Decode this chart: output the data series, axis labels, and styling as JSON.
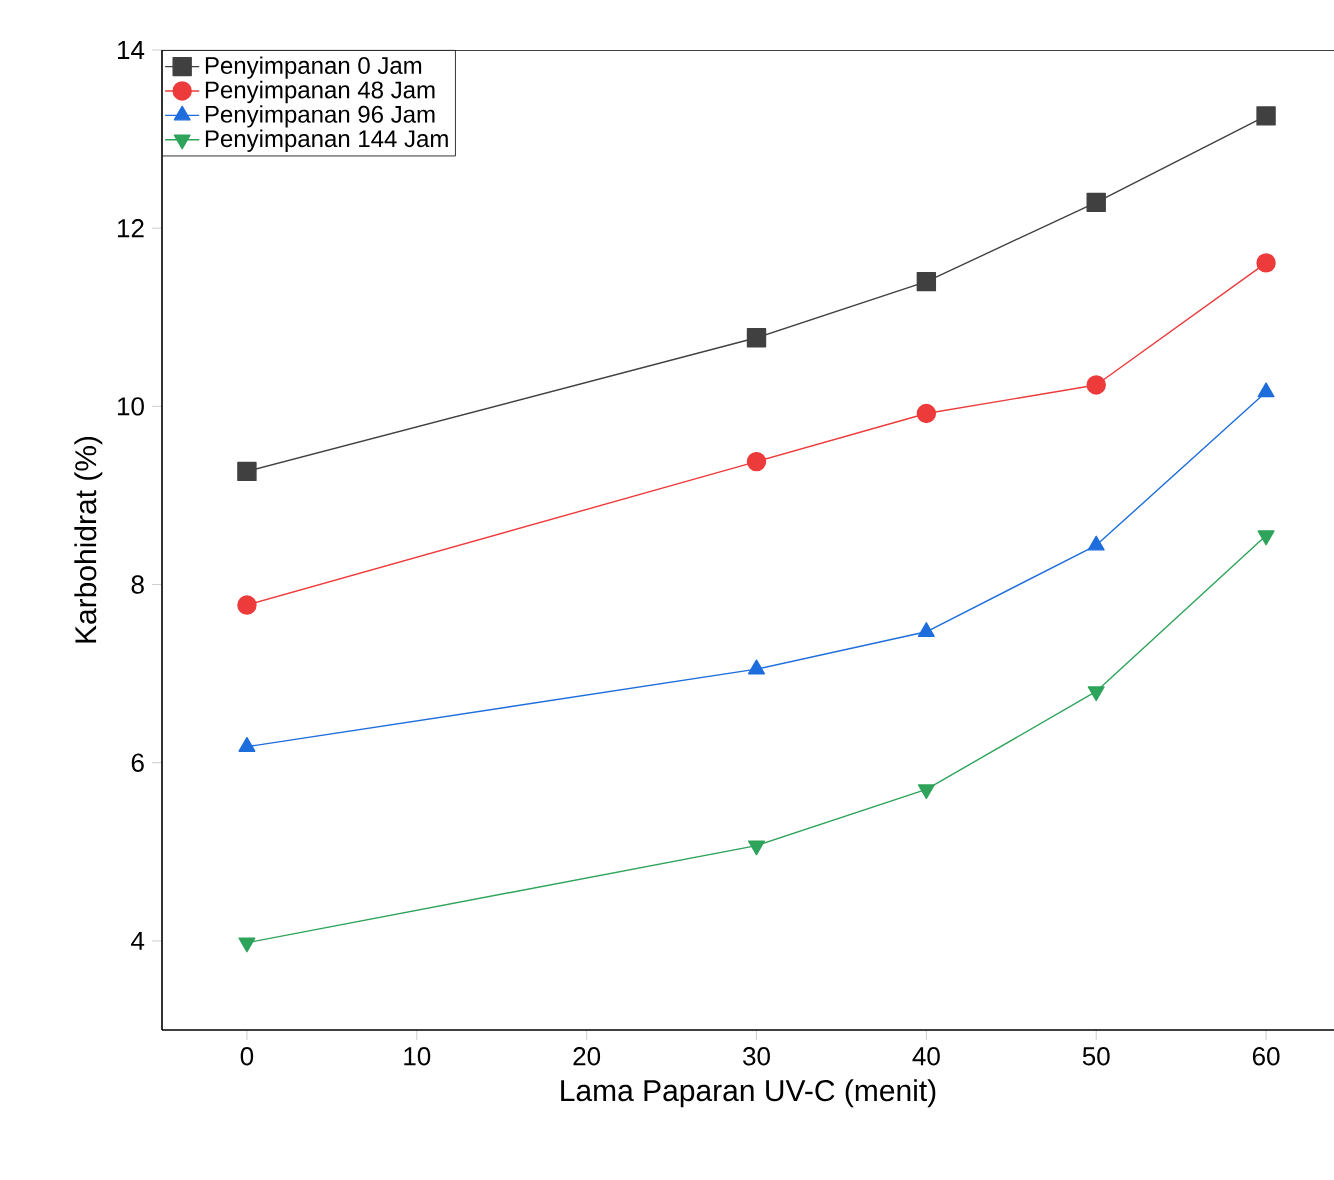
{
  "chart_data": {
    "type": "line",
    "xlabel": "Lama Paparan UV-C (menit)",
    "ylabel": "Karbohidrat (%)",
    "x": [
      0,
      30,
      40,
      50,
      60
    ],
    "series": [
      {
        "name": "Penyimpanan 0 Jam",
        "color": "#404040",
        "marker": "square",
        "values": [
          9.27,
          10.77,
          11.4,
          12.29,
          13.26
        ]
      },
      {
        "name": "Penyimpanan 48 Jam",
        "color": "#ed3a3a",
        "marker": "circle",
        "values": [
          7.77,
          9.38,
          9.92,
          10.24,
          11.61
        ]
      },
      {
        "name": "Penyimpanan 96 Jam",
        "color": "#1d6ddc",
        "marker": "triangle",
        "values": [
          6.18,
          7.05,
          7.47,
          8.44,
          10.16
        ]
      },
      {
        "name": "Penyimpanan 144 Jam",
        "color": "#2ea35a",
        "marker": "triangle-down",
        "values": [
          3.98,
          5.07,
          5.7,
          6.8,
          8.55
        ]
      }
    ],
    "xlim": [
      -5,
      64
    ],
    "ylim": [
      3,
      14
    ],
    "xticks": [
      0,
      10,
      20,
      30,
      40,
      50,
      60
    ],
    "yticks": [
      4,
      6,
      8,
      10,
      12,
      14
    ],
    "legend": "top left",
    "grid": false,
    "line_style": "solid"
  }
}
